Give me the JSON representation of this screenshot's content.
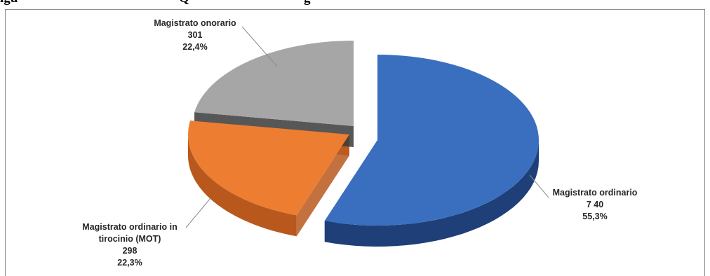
{
  "header": {
    "fragment_left": "igu",
    "fragment_mid": "Q",
    "fragment_right": "g"
  },
  "chart_data": {
    "type": "pie",
    "title": "",
    "slices": [
      {
        "label": "Magistrato ordinario",
        "value_text": "7 40",
        "value": 740,
        "percent_text": "55,3%",
        "percent": 55.3,
        "color": "#3a6fbf",
        "side_color": "#1f3f78"
      },
      {
        "label": "Magistrato ordinario in tirocinio (MOT)",
        "label_lines": [
          "Magistrato ordinario in",
          "tirocinio (MOT)"
        ],
        "value_text": "298",
        "value": 298,
        "percent_text": "22,3%",
        "percent": 22.3,
        "color": "#ed7d31",
        "side_color": "#b8581c"
      },
      {
        "label": "Magistrato onorario",
        "value_text": "301",
        "value": 301,
        "percent_text": "22,4%",
        "percent": 22.4,
        "color": "#a6a6a6",
        "side_color": "#3a3a3a"
      }
    ],
    "legend": "none",
    "style": "3d-exploded"
  }
}
